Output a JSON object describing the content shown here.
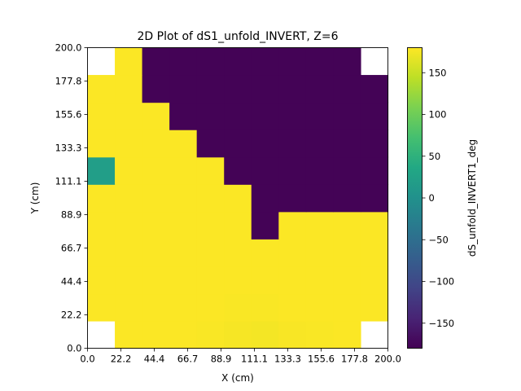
{
  "chart_data": {
    "type": "heatmap",
    "title": "2D Plot of dS1_unfold_INVERT, Z=6",
    "xlabel": "X (cm)",
    "ylabel": "Y (cm)",
    "xlim": [
      0,
      200
    ],
    "ylim": [
      0,
      200
    ],
    "x_ticks": [
      "0.0",
      "22.2",
      "44.4",
      "66.7",
      "88.9",
      "111.1",
      "133.3",
      "155.6",
      "177.8",
      "200.0"
    ],
    "y_ticks": [
      "0.0",
      "22.2",
      "44.4",
      "66.7",
      "88.9",
      "111.1",
      "133.3",
      "155.6",
      "177.8",
      "200.0"
    ],
    "grid": false,
    "colormap": "viridis",
    "colorbar": {
      "label": "dS_unfold_INVERT1_deg",
      "min": -180,
      "max": 180,
      "ticks": [
        "150",
        "100",
        "50",
        "0",
        "−50",
        "−100",
        "−150"
      ],
      "tick_values": [
        150,
        100,
        50,
        0,
        -50,
        -100,
        -150
      ]
    },
    "grid_shape": [
      11,
      11
    ],
    "cell_size_cm": 18.18,
    "values_rows_bottom_to_top": [
      [
        null,
        179,
        179,
        179,
        178,
        176,
        175,
        177,
        178,
        179,
        null
      ],
      [
        179,
        179,
        179,
        179,
        179,
        178,
        178,
        179,
        179,
        179,
        179
      ],
      [
        179,
        179,
        179,
        179,
        179,
        179,
        179,
        179,
        179,
        179,
        179
      ],
      [
        179,
        179,
        179,
        179,
        179,
        179,
        179,
        179,
        179,
        179,
        179
      ],
      [
        179,
        179,
        179,
        179,
        179,
        179,
        -178,
        179,
        179,
        179,
        179
      ],
      [
        179,
        179,
        179,
        179,
        179,
        179,
        -178,
        -178,
        -178,
        -178,
        -178
      ],
      [
        20,
        179,
        179,
        179,
        179,
        -178,
        -178,
        -178,
        -178,
        -178,
        -178
      ],
      [
        179,
        179,
        179,
        179,
        -178,
        -178,
        -178,
        -178,
        -178,
        -178,
        -178
      ],
      [
        179,
        179,
        179,
        -178,
        -178,
        -178,
        -178,
        -178,
        -178,
        -178,
        -178
      ],
      [
        179,
        179,
        -178,
        -178,
        -178,
        -178,
        -178,
        -178,
        -178,
        -178,
        -178
      ],
      [
        null,
        179,
        -178,
        -178,
        -178,
        -178,
        -178,
        -178,
        -178,
        -178,
        null
      ]
    ]
  }
}
